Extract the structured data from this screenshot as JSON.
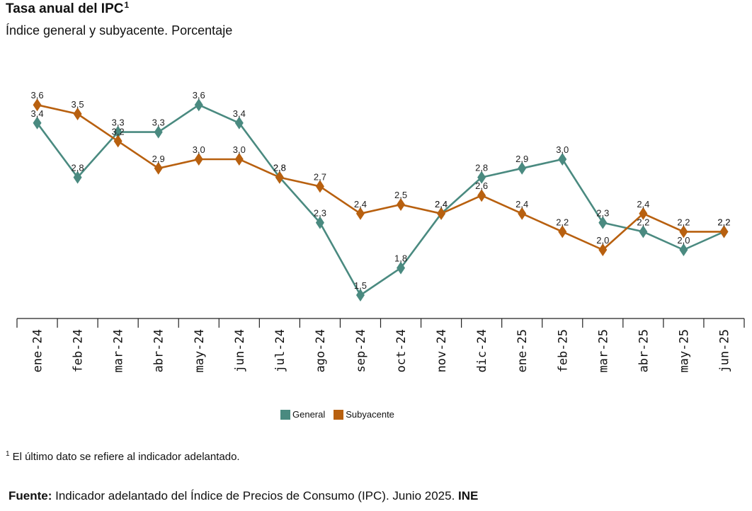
{
  "header": {
    "title": "Tasa anual del IPC",
    "title_sup": "1",
    "subtitle": "Índice general y subyacente. Porcentaje"
  },
  "footnote": {
    "marker": "1",
    "text": "El último dato se refiere al indicador adelantado."
  },
  "source": {
    "label": "Fuente:",
    "text": "Indicador adelantado del Índice de Precios de Consumo (IPC). Junio 2025.",
    "org": "INE"
  },
  "chart_data": {
    "type": "line",
    "categories": [
      "ene-24",
      "feb-24",
      "mar-24",
      "abr-24",
      "may-24",
      "jun-24",
      "jul-24",
      "ago-24",
      "sep-24",
      "oct-24",
      "nov-24",
      "dic-24",
      "ene-25",
      "feb-25",
      "mar-25",
      "abr-25",
      "may-25",
      "jun-25"
    ],
    "series": [
      {
        "name": "General",
        "color": "#4a8a80",
        "values": [
          3.4,
          2.8,
          3.3,
          3.3,
          3.6,
          3.4,
          2.8,
          2.3,
          1.5,
          1.8,
          2.4,
          2.8,
          2.9,
          3.0,
          2.3,
          2.2,
          2.0,
          2.2
        ],
        "labels": [
          "3,4",
          "2,8",
          "3,3",
          "3,3",
          "3,6",
          "3,4",
          "2,8",
          "2,3",
          "1,5",
          "1,8",
          "2,4",
          "2,8",
          "2,9",
          "3,0",
          "2,3",
          "2,2",
          "2,0",
          "2,2"
        ]
      },
      {
        "name": "Subyacente",
        "color": "#b8600f",
        "values": [
          3.6,
          3.5,
          3.2,
          2.9,
          3.0,
          3.0,
          2.8,
          2.7,
          2.4,
          2.5,
          2.4,
          2.6,
          2.4,
          2.2,
          2.0,
          2.4,
          2.2,
          2.2
        ],
        "labels": [
          "3,6",
          "3,5",
          "3,2",
          "2,9",
          "3,0",
          "3,0",
          "2,8",
          "2,7",
          "2,4",
          "2,5",
          "2,4",
          "2,6",
          "2,4",
          "2,2",
          "2,0",
          "2,4",
          "2,2",
          "2,2"
        ]
      }
    ],
    "ylim": [
      1.3,
      3.8
    ],
    "grid": false,
    "legend_position": "bottom"
  }
}
